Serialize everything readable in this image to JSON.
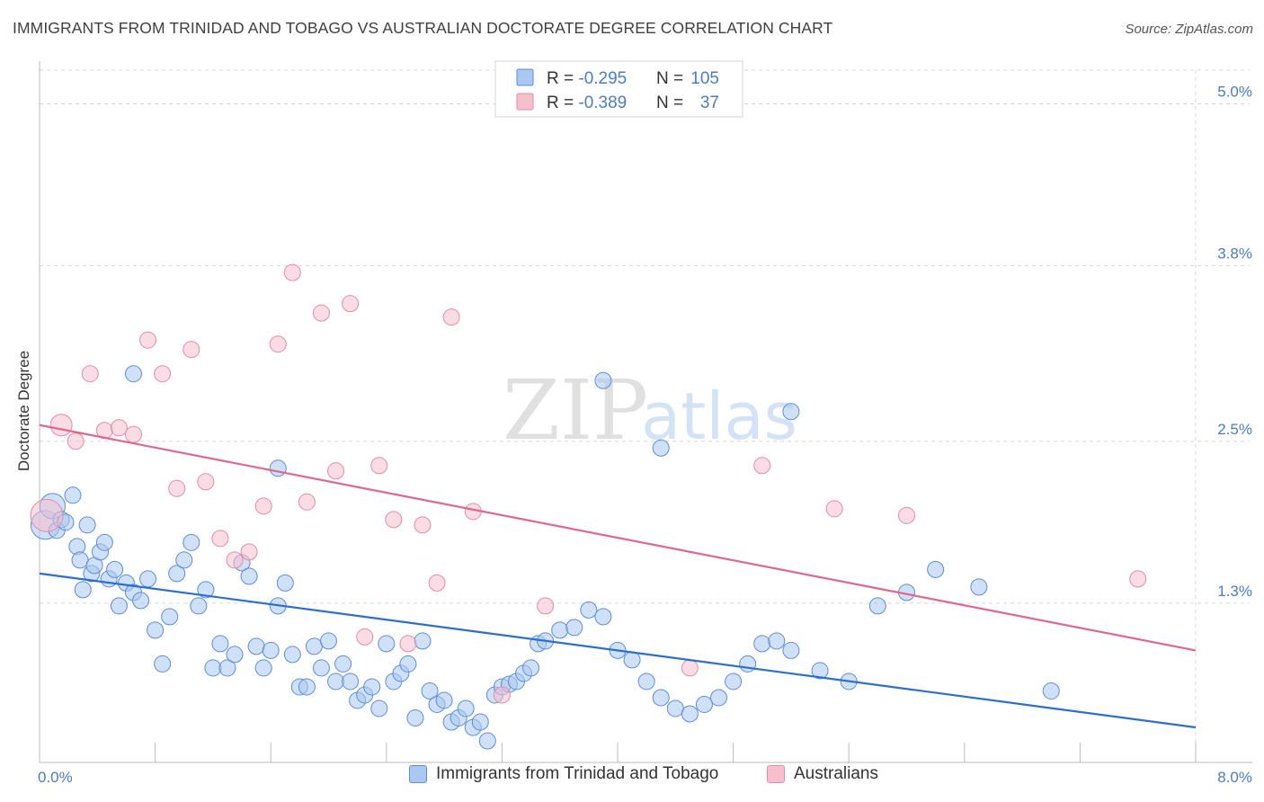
{
  "title": "IMMIGRANTS FROM TRINIDAD AND TOBAGO VS AUSTRALIAN DOCTORATE DEGREE CORRELATION CHART",
  "source": "Source: ZipAtlas.com",
  "watermark": {
    "zip": "ZIP",
    "atlas": "atlas"
  },
  "colors": {
    "blue_fill": "#aac8f0",
    "blue_stroke": "#5b8ed6",
    "blue_line": "#2a6fd0",
    "pink_fill": "#f6bfcd",
    "pink_stroke": "#e58aa5",
    "pink_line": "#e06690",
    "axis_label": "#4a7cc7",
    "grid": "#d8d8d8"
  },
  "stats_legend": {
    "rows": [
      {
        "r_label": "R = ",
        "r_value": "-0.295",
        "n_label": "N = ",
        "n_value": "105",
        "series": "blue"
      },
      {
        "r_label": "R = ",
        "r_value": "-0.389",
        "n_label": "N = ",
        "n_value": "37",
        "series": "pink"
      }
    ]
  },
  "bottom_legend": [
    {
      "label": "Immigrants from Trinidad and Tobago",
      "series": "blue"
    },
    {
      "label": "Australians",
      "series": "pink"
    }
  ],
  "chart_data": {
    "type": "scatter",
    "ylabel": "Doctorate Degree",
    "xlim": [
      0,
      8
    ],
    "ylim": [
      0.12,
      5.25
    ],
    "x_ticks": [
      {
        "value": 0,
        "label": "0.0%"
      },
      {
        "value": 8,
        "label": "8.0%"
      }
    ],
    "y_ticks": [
      {
        "value": 1.3,
        "label": "1.3%"
      },
      {
        "value": 2.5,
        "label": "2.5%"
      },
      {
        "value": 3.8,
        "label": "3.8%"
      },
      {
        "value": 5.0,
        "label": "5.0%"
      }
    ],
    "series": [
      {
        "key": "blue",
        "name": "Immigrants from Trinidad and Tobago",
        "trend": {
          "x": [
            0,
            8
          ],
          "y": [
            1.52,
            0.38
          ]
        },
        "points": [
          [
            0.04,
            1.88,
            16
          ],
          [
            0.09,
            2.02,
            14
          ],
          [
            0.12,
            1.84,
            9
          ],
          [
            0.15,
            1.92,
            9
          ],
          [
            0.18,
            1.9,
            9
          ],
          [
            0.23,
            2.1,
            9
          ],
          [
            0.26,
            1.72,
            9
          ],
          [
            0.28,
            1.62,
            9
          ],
          [
            0.3,
            1.4,
            9
          ],
          [
            0.33,
            1.88,
            9
          ],
          [
            0.36,
            1.52,
            9
          ],
          [
            0.38,
            1.58,
            9
          ],
          [
            0.42,
            1.68,
            9
          ],
          [
            0.45,
            1.75,
            9
          ],
          [
            0.48,
            1.48,
            9
          ],
          [
            0.52,
            1.55,
            9
          ],
          [
            0.55,
            1.28,
            9
          ],
          [
            0.6,
            1.45,
            9
          ],
          [
            0.65,
            1.38,
            9
          ],
          [
            0.7,
            1.32,
            9
          ],
          [
            0.75,
            1.48,
            9
          ],
          [
            0.8,
            1.1,
            9
          ],
          [
            0.85,
            0.85,
            9
          ],
          [
            0.9,
            1.2,
            9
          ],
          [
            0.95,
            1.52,
            9
          ],
          [
            1.0,
            1.62,
            9
          ],
          [
            1.05,
            1.75,
            9
          ],
          [
            1.1,
            1.28,
            9
          ],
          [
            1.15,
            1.4,
            9
          ],
          [
            1.2,
            0.82,
            9
          ],
          [
            1.25,
            1.0,
            9
          ],
          [
            1.3,
            0.82,
            9
          ],
          [
            1.35,
            0.92,
            9
          ],
          [
            1.4,
            1.6,
            9
          ],
          [
            1.45,
            1.5,
            9
          ],
          [
            1.5,
            0.98,
            9
          ],
          [
            1.55,
            0.82,
            9
          ],
          [
            1.6,
            0.95,
            9
          ],
          [
            1.65,
            1.28,
            9
          ],
          [
            1.7,
            1.45,
            9
          ],
          [
            1.75,
            0.92,
            9
          ],
          [
            1.8,
            0.68,
            9
          ],
          [
            1.85,
            0.68,
            9
          ],
          [
            1.9,
            0.98,
            9
          ],
          [
            1.95,
            0.82,
            9
          ],
          [
            2.0,
            1.02,
            9
          ],
          [
            2.05,
            0.72,
            9
          ],
          [
            2.1,
            0.85,
            9
          ],
          [
            2.15,
            0.72,
            9
          ],
          [
            2.2,
            0.58,
            9
          ],
          [
            2.25,
            0.62,
            9
          ],
          [
            2.3,
            0.68,
            9
          ],
          [
            2.35,
            0.52,
            9
          ],
          [
            2.4,
            1.0,
            9
          ],
          [
            2.45,
            0.72,
            9
          ],
          [
            2.5,
            0.78,
            9
          ],
          [
            2.55,
            0.85,
            9
          ],
          [
            2.6,
            0.45,
            9
          ],
          [
            2.65,
            1.02,
            9
          ],
          [
            2.7,
            0.65,
            9
          ],
          [
            2.75,
            0.55,
            9
          ],
          [
            2.8,
            0.58,
            9
          ],
          [
            2.85,
            0.42,
            9
          ],
          [
            2.9,
            0.45,
            9
          ],
          [
            2.95,
            0.52,
            9
          ],
          [
            3.0,
            0.38,
            9
          ],
          [
            3.05,
            0.42,
            9
          ],
          [
            3.1,
            0.28,
            9
          ],
          [
            3.15,
            0.62,
            9
          ],
          [
            3.2,
            0.68,
            9
          ],
          [
            3.25,
            0.7,
            9
          ],
          [
            3.3,
            0.72,
            9
          ],
          [
            3.35,
            0.78,
            9
          ],
          [
            3.4,
            0.82,
            9
          ],
          [
            3.45,
            1.0,
            9
          ],
          [
            3.5,
            1.02,
            9
          ],
          [
            3.6,
            1.1,
            9
          ],
          [
            3.7,
            1.12,
            9
          ],
          [
            3.8,
            1.25,
            9
          ],
          [
            3.9,
            1.2,
            9
          ],
          [
            4.0,
            0.95,
            9
          ],
          [
            4.1,
            0.88,
            9
          ],
          [
            4.2,
            0.72,
            9
          ],
          [
            4.3,
            0.6,
            9
          ],
          [
            4.4,
            0.52,
            9
          ],
          [
            4.5,
            0.48,
            9
          ],
          [
            4.6,
            0.55,
            9
          ],
          [
            4.7,
            0.6,
            9
          ],
          [
            4.8,
            0.72,
            9
          ],
          [
            4.9,
            0.85,
            9
          ],
          [
            5.0,
            1.0,
            9
          ],
          [
            5.1,
            1.02,
            9
          ],
          [
            5.2,
            0.95,
            9
          ],
          [
            5.4,
            0.8,
            9
          ],
          [
            5.6,
            0.72,
            9
          ],
          [
            5.8,
            1.28,
            9
          ],
          [
            6.0,
            1.38,
            9
          ],
          [
            6.2,
            1.55,
            9
          ],
          [
            6.5,
            1.42,
            9
          ],
          [
            7.0,
            0.65,
            9
          ],
          [
            0.65,
            3.0,
            9
          ],
          [
            3.9,
            2.95,
            9
          ],
          [
            4.3,
            2.45,
            9
          ],
          [
            5.2,
            2.72,
            9
          ],
          [
            1.65,
            2.3,
            9
          ]
        ]
      },
      {
        "key": "pink",
        "name": "Australians",
        "trend": {
          "x": [
            0,
            8
          ],
          "y": [
            2.62,
            0.95
          ]
        },
        "points": [
          [
            0.05,
            1.95,
            18
          ],
          [
            0.15,
            2.62,
            12
          ],
          [
            0.25,
            2.5,
            9
          ],
          [
            0.35,
            3.0,
            9
          ],
          [
            0.45,
            2.58,
            9
          ],
          [
            0.55,
            2.6,
            9
          ],
          [
            0.65,
            2.55,
            9
          ],
          [
            0.75,
            3.25,
            9
          ],
          [
            0.85,
            3.0,
            9
          ],
          [
            0.95,
            2.15,
            9
          ],
          [
            1.05,
            3.18,
            9
          ],
          [
            1.15,
            2.2,
            9
          ],
          [
            1.25,
            1.78,
            9
          ],
          [
            1.35,
            1.62,
            9
          ],
          [
            1.45,
            1.68,
            9
          ],
          [
            1.55,
            2.02,
            9
          ],
          [
            1.65,
            3.22,
            9
          ],
          [
            1.75,
            3.75,
            9
          ],
          [
            1.85,
            2.05,
            9
          ],
          [
            1.95,
            3.45,
            9
          ],
          [
            2.05,
            2.28,
            9
          ],
          [
            2.15,
            3.52,
            9
          ],
          [
            2.25,
            1.05,
            9
          ],
          [
            2.35,
            2.32,
            9
          ],
          [
            2.45,
            1.92,
            9
          ],
          [
            2.55,
            1.0,
            9
          ],
          [
            2.65,
            1.88,
            9
          ],
          [
            2.75,
            1.45,
            9
          ],
          [
            2.85,
            3.42,
            9
          ],
          [
            3.0,
            1.98,
            9
          ],
          [
            3.2,
            0.62,
            9
          ],
          [
            3.5,
            1.28,
            9
          ],
          [
            4.5,
            0.82,
            9
          ],
          [
            5.0,
            2.32,
            9
          ],
          [
            5.5,
            2.0,
            9
          ],
          [
            6.0,
            1.95,
            9
          ],
          [
            7.6,
            1.48,
            9
          ]
        ]
      }
    ]
  }
}
